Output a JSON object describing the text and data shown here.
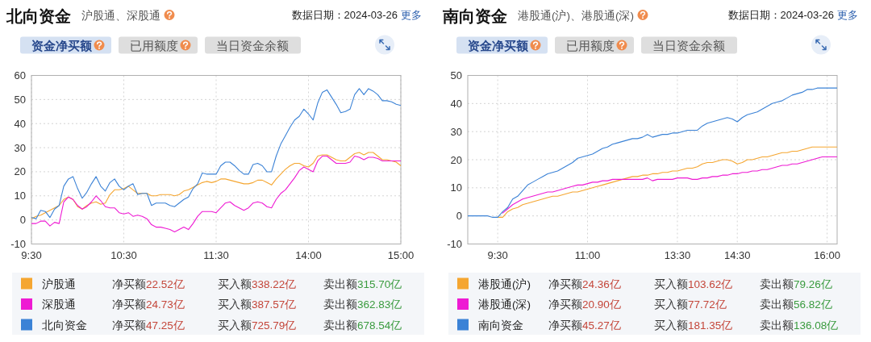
{
  "chart_data": [
    {
      "type": "line",
      "title": "北向资金",
      "subtitle": "沪股通、深股通",
      "annotations": [
        "数据日期：2024-03-26",
        "更多",
        "资金净买额",
        "已用额度",
        "当日资金余额",
        "净买额22.52亿",
        "买入额338.22亿",
        "卖出额315.70亿",
        "净买额24.73亿",
        "买入额387.57亿",
        "卖出额362.83亿",
        "净买额47.25亿",
        "买入额725.79亿",
        "卖出额678.54亿"
      ],
      "categories": [
        "9:30",
        null,
        null,
        null,
        null,
        null,
        null,
        null,
        null,
        null,
        null,
        null,
        null,
        null,
        null,
        null,
        null,
        null,
        null,
        null,
        "10:30",
        null,
        null,
        null,
        null,
        null,
        null,
        null,
        null,
        null,
        null,
        null,
        null,
        null,
        null,
        null,
        null,
        null,
        null,
        null,
        "11:30",
        null,
        null,
        null,
        null,
        null,
        null,
        null,
        null,
        null,
        null,
        null,
        null,
        null,
        null,
        null,
        null,
        null,
        null,
        null,
        "14:00",
        null,
        null,
        null,
        null,
        null,
        null,
        null,
        null,
        null,
        null,
        null,
        null,
        null,
        null,
        null,
        null,
        null,
        null,
        null,
        "15:00"
      ],
      "ylim": [
        -10,
        60
      ],
      "yticks": [
        -10,
        0,
        10,
        20,
        30,
        40,
        50,
        60
      ],
      "grid": true,
      "legend": "bottom",
      "series": [
        {
          "name": "沪股通",
          "color": "#f5a631",
          "values": [
            0.5,
            1.5,
            2,
            3,
            4,
            5,
            6,
            8.5,
            9.5,
            8.5,
            5.5,
            4.5,
            6,
            7,
            7.5,
            6.5,
            7,
            10.5,
            12.5,
            12.5,
            13,
            14,
            12.5,
            11,
            11,
            11,
            10,
            10,
            10.5,
            10.5,
            10.5,
            10,
            10.5,
            12,
            12.5,
            13.5,
            14.5,
            15.5,
            16,
            15.5,
            16,
            17,
            17,
            16.5,
            16,
            15.5,
            15,
            15,
            15.5,
            16.5,
            16.5,
            15.5,
            14.5,
            17,
            19,
            21,
            22.5,
            23.5,
            23.5,
            22.5,
            22,
            23.5,
            26.5,
            27,
            27,
            26,
            25,
            24.5,
            24.5,
            26,
            27.5,
            28,
            27,
            28,
            28,
            26.5,
            25,
            25,
            24.5,
            24,
            22.5
          ]
        },
        {
          "name": "深股通",
          "color": "#ee1ad3",
          "values": [
            -1.5,
            -1.5,
            -0.5,
            -0.5,
            -2.5,
            -1,
            -1.5,
            7.5,
            9.5,
            8.5,
            6,
            4.5,
            5.5,
            7.5,
            10,
            8,
            5.5,
            5,
            5,
            3,
            2.5,
            3,
            1.5,
            2,
            1.5,
            0.5,
            -2,
            -3,
            -3,
            -3.5,
            -4,
            -5,
            -4,
            -3,
            -4,
            -1.5,
            1.5,
            3.5,
            3.5,
            3.5,
            3,
            5,
            7,
            7.5,
            6,
            5,
            4,
            5,
            7,
            7.5,
            7,
            5.5,
            5,
            8.5,
            11,
            12.5,
            15,
            17.5,
            20.5,
            22,
            21,
            20,
            24.5,
            26.5,
            26.5,
            25,
            23.5,
            23.5,
            23.5,
            24,
            26.5,
            26,
            25,
            26,
            26,
            25.5,
            24.5,
            24.5,
            24.5,
            24.5,
            24.5
          ]
        },
        {
          "name": "北向资金",
          "color": "#3b82d6",
          "values": [
            1,
            0.5,
            4,
            3.5,
            1,
            4.5,
            6,
            14,
            17,
            18,
            13,
            9,
            11.5,
            15,
            18,
            14,
            12,
            15.5,
            17,
            14,
            12.5,
            14,
            15,
            10.5,
            11,
            11,
            6,
            7,
            7,
            7,
            6,
            5.5,
            7,
            8.5,
            9.5,
            13,
            15,
            19.5,
            19,
            19,
            19,
            22.5,
            24,
            24,
            22.5,
            20.5,
            19,
            19,
            23,
            23.5,
            22.5,
            20,
            20,
            26.5,
            31.5,
            35,
            38.5,
            41.5,
            43,
            46,
            44,
            41.5,
            48.5,
            53,
            54,
            51,
            48,
            44.5,
            45,
            46,
            52,
            54.5,
            52,
            54.5,
            53.5,
            52,
            49.5,
            49.5,
            49,
            48,
            47.5
          ]
        }
      ]
    },
    {
      "type": "line",
      "title": "南向资金",
      "subtitle": "港股通(沪)、港股通(深)",
      "annotations": [
        "数据日期：2024-03-26",
        "更多",
        "资金净买额",
        "已用额度",
        "当日资金余额",
        "净买额24.36亿",
        "买入额103.62亿",
        "卖出额79.26亿",
        "净买额20.90亿",
        "买入额77.72亿",
        "卖出额56.82亿",
        "净买额45.27亿",
        "买入额181.35亿",
        "卖出额136.08亿"
      ],
      "categories": [
        null,
        null,
        null,
        null,
        null,
        null,
        "9:30",
        null,
        null,
        null,
        null,
        null,
        null,
        null,
        null,
        null,
        null,
        null,
        null,
        null,
        null,
        null,
        null,
        null,
        "11:00",
        null,
        null,
        null,
        null,
        null,
        null,
        null,
        null,
        null,
        null,
        null,
        null,
        null,
        null,
        null,
        null,
        null,
        "13:30",
        null,
        null,
        null,
        null,
        null,
        null,
        null,
        null,
        null,
        null,
        null,
        "14:30",
        null,
        null,
        null,
        null,
        null,
        null,
        null,
        null,
        null,
        null,
        null,
        null,
        null,
        null,
        null,
        null,
        null,
        "16:00",
        null,
        null
      ],
      "ylim": [
        -10,
        50
      ],
      "yticks": [
        -10,
        0,
        10,
        20,
        30,
        40,
        50
      ],
      "grid": true,
      "legend": "bottom",
      "series": [
        {
          "name": "港股通(沪)",
          "color": "#f5a631",
          "values": [
            null,
            null,
            null,
            null,
            null,
            null,
            -0.5,
            -0.5,
            1.5,
            2.5,
            3,
            4,
            4.5,
            5,
            5.5,
            6,
            6.5,
            7,
            7,
            7.5,
            8,
            8.5,
            8.5,
            9,
            9.5,
            10,
            10.5,
            11,
            11.5,
            12,
            12.5,
            13,
            13.5,
            14,
            14,
            14.5,
            14.5,
            15,
            15,
            15.5,
            15.5,
            16,
            16,
            16.5,
            17,
            17,
            17.5,
            18.5,
            19,
            19,
            19.5,
            20,
            20,
            19.5,
            18.5,
            19,
            20,
            20,
            20.5,
            21,
            21,
            21.5,
            22,
            22.5,
            22.5,
            23,
            23,
            23.5,
            24,
            24.5,
            24.5,
            24.5,
            24.5,
            24.5,
            24.5
          ]
        },
        {
          "name": "港股通(深)",
          "color": "#ee1ad3",
          "values": [
            null,
            null,
            null,
            null,
            null,
            null,
            null,
            1,
            2.5,
            4,
            5,
            6,
            6.5,
            7,
            7.5,
            8,
            8.5,
            8.5,
            9,
            9.5,
            10,
            10.5,
            11,
            11,
            11.5,
            12,
            12,
            12.5,
            12.5,
            13,
            13,
            13,
            13,
            13,
            13,
            13,
            13.5,
            12.5,
            13,
            13,
            13,
            13,
            13.5,
            13.5,
            13.5,
            13,
            13,
            13.5,
            13.5,
            14,
            14,
            14.5,
            14.5,
            15,
            15,
            15.5,
            15.5,
            16,
            16,
            16.5,
            16.5,
            17,
            17.5,
            18,
            18,
            18.5,
            18.5,
            19,
            19.5,
            20,
            20.5,
            21,
            21,
            21,
            21
          ]
        },
        {
          "name": "南向资金",
          "color": "#3b82d6",
          "values": [
            0,
            0,
            0,
            0,
            0,
            -0.5,
            -0.5,
            1.5,
            3,
            6,
            7,
            9,
            11,
            12,
            13,
            14,
            15,
            15.5,
            16,
            17,
            18,
            19,
            20.5,
            21,
            21.5,
            22,
            23,
            24,
            24.5,
            25.5,
            26,
            26.5,
            27,
            27.5,
            27.5,
            28,
            29,
            28,
            28.5,
            29,
            29,
            29.5,
            29.5,
            30,
            30.5,
            30.5,
            30.5,
            32,
            33,
            33.5,
            34,
            34.5,
            35,
            34.5,
            33.5,
            35,
            36,
            36.5,
            37,
            38,
            39,
            40,
            40.5,
            41,
            42,
            43,
            43.5,
            44,
            45,
            45,
            45.5,
            45.5,
            45.5,
            45.5,
            45.5
          ]
        }
      ]
    }
  ]
}
